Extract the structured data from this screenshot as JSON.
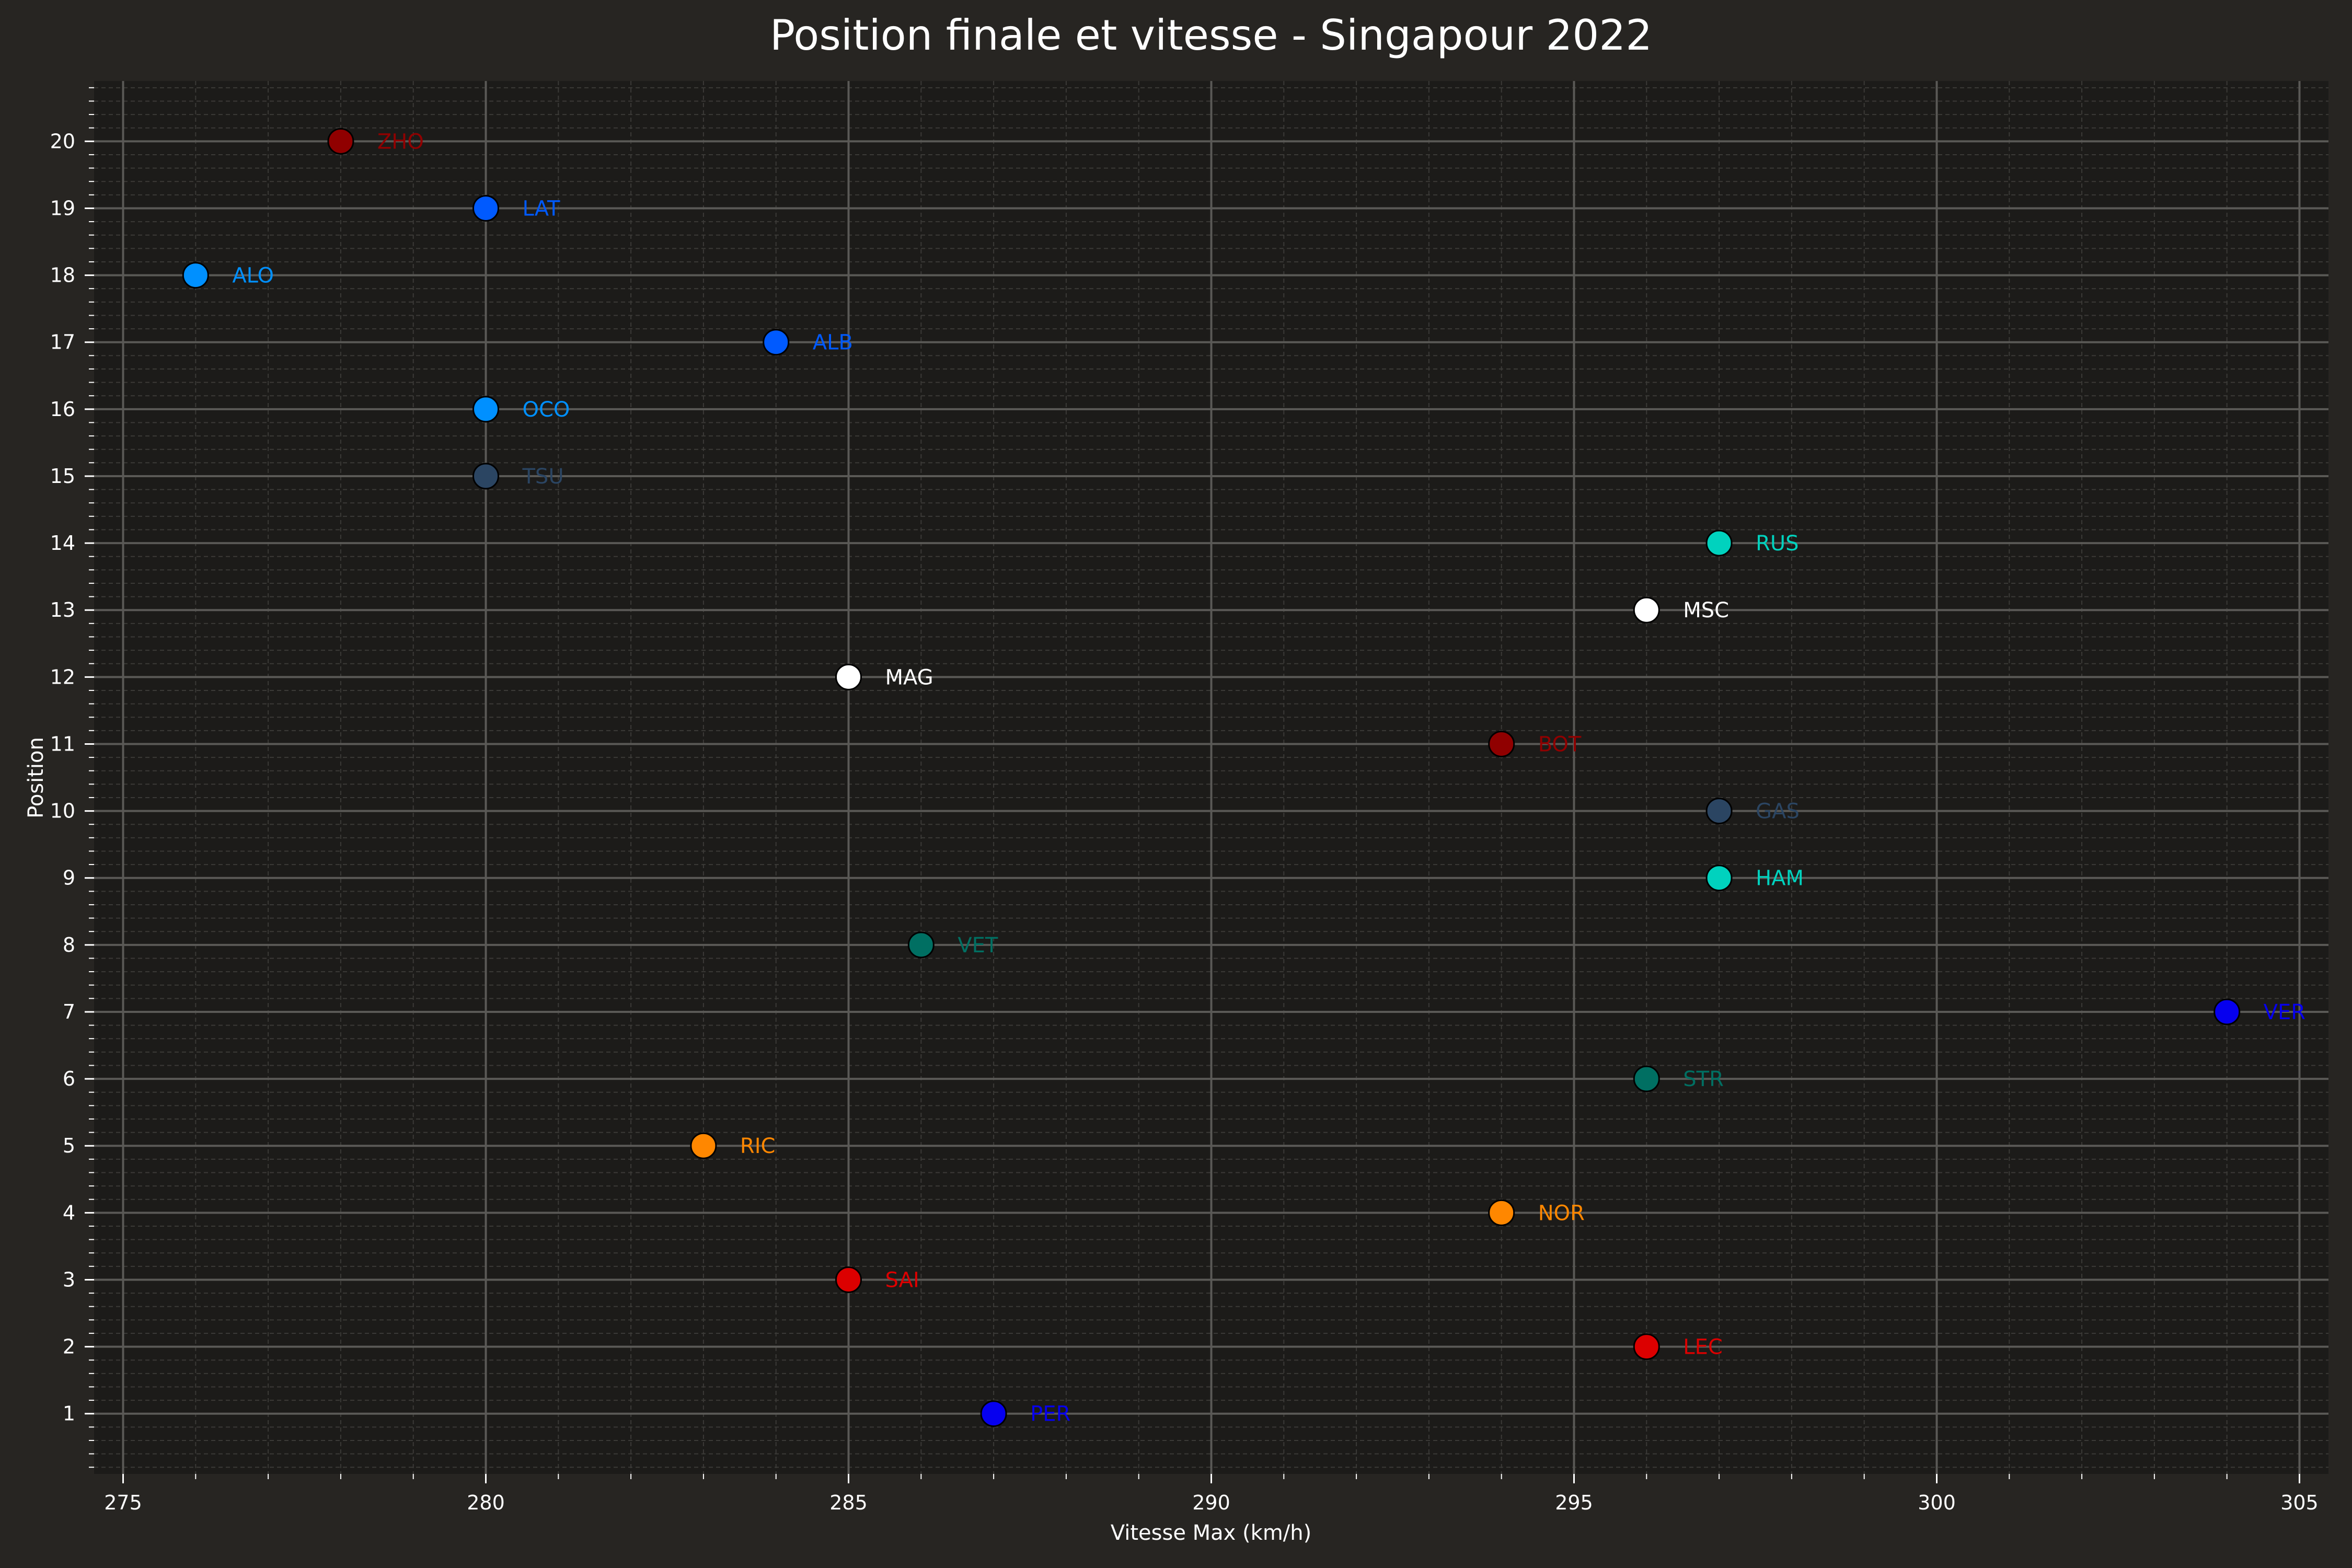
{
  "chart_data": {
    "type": "scatter",
    "title": "Position finale et vitesse - Singapour 2022",
    "xlabel": "Vitesse Max (km/h)",
    "ylabel": "Position",
    "xlim": [
      274.6,
      305.4
    ],
    "ylim": [
      0.1,
      20.9
    ],
    "xticks": [
      275,
      280,
      285,
      290,
      295,
      300,
      305
    ],
    "yticks": [
      1,
      2,
      3,
      4,
      5,
      6,
      7,
      8,
      9,
      10,
      11,
      12,
      13,
      14,
      15,
      16,
      17,
      18,
      19,
      20
    ],
    "grid": true,
    "background_color": "#1c1b19",
    "figure_color": "#272522",
    "points": [
      {
        "label": "ZHO",
        "x": 278,
        "y": 20,
        "color": "#900000"
      },
      {
        "label": "LAT",
        "x": 280,
        "y": 19,
        "color": "#005aff"
      },
      {
        "label": "ALO",
        "x": 276,
        "y": 18,
        "color": "#0090ff"
      },
      {
        "label": "ALB",
        "x": 284,
        "y": 17,
        "color": "#005aff"
      },
      {
        "label": "OCO",
        "x": 280,
        "y": 16,
        "color": "#0090ff"
      },
      {
        "label": "TSU",
        "x": 280,
        "y": 15,
        "color": "#2b4562"
      },
      {
        "label": "RUS",
        "x": 297,
        "y": 14,
        "color": "#00d2be"
      },
      {
        "label": "MSC",
        "x": 296,
        "y": 13,
        "color": "#ffffff"
      },
      {
        "label": "MAG",
        "x": 285,
        "y": 12,
        "color": "#ffffff"
      },
      {
        "label": "BOT",
        "x": 294,
        "y": 11,
        "color": "#900000"
      },
      {
        "label": "GAS",
        "x": 297,
        "y": 10,
        "color": "#2b4562"
      },
      {
        "label": "HAM",
        "x": 297,
        "y": 9,
        "color": "#00d2be"
      },
      {
        "label": "VET",
        "x": 286,
        "y": 8,
        "color": "#006f62"
      },
      {
        "label": "VER",
        "x": 304,
        "y": 7,
        "color": "#0600ef"
      },
      {
        "label": "STR",
        "x": 296,
        "y": 6,
        "color": "#006f62"
      },
      {
        "label": "RIC",
        "x": 283,
        "y": 5,
        "color": "#ff8700"
      },
      {
        "label": "NOR",
        "x": 294,
        "y": 4,
        "color": "#ff8700"
      },
      {
        "label": "SAI",
        "x": 285,
        "y": 3,
        "color": "#dc0000"
      },
      {
        "label": "LEC",
        "x": 296,
        "y": 2,
        "color": "#dc0000"
      },
      {
        "label": "PER",
        "x": 287,
        "y": 1,
        "color": "#0600ef"
      }
    ]
  }
}
